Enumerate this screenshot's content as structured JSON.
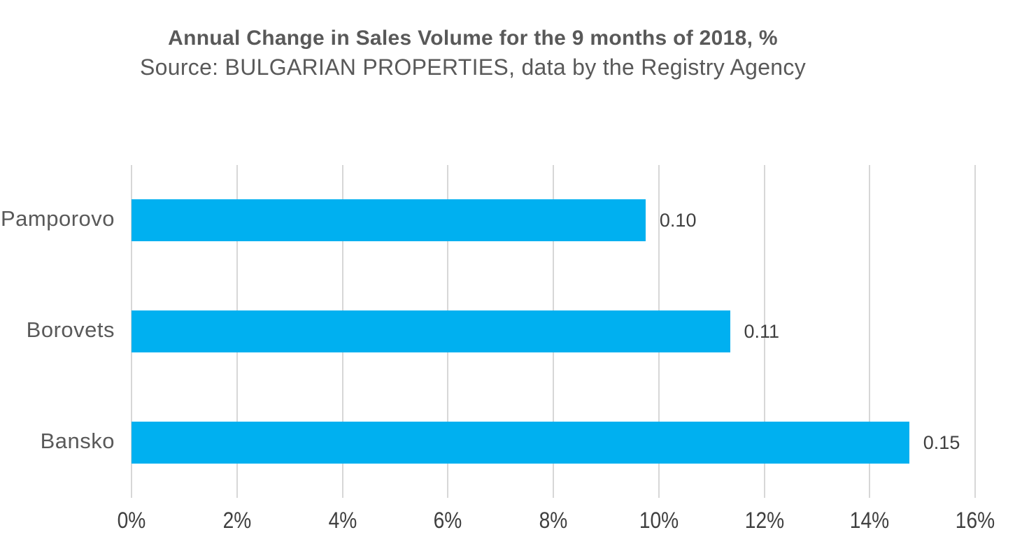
{
  "chart_data": {
    "type": "bar",
    "orientation": "horizontal",
    "title": "Annual Change in Sales Volume for the 9 months of 2018, %",
    "subtitle": "Source: BULGARIAN PROPERTIES, data by the Registry Agency",
    "categories": [
      "Pamporovo",
      "Borovets",
      "Bansko"
    ],
    "values_percent": [
      9.75,
      11.35,
      14.75
    ],
    "data_labels": [
      "0.10",
      "0.11",
      "0.15"
    ],
    "x_axis": {
      "min": 0,
      "max": 16,
      "ticks": [
        "0%",
        "2%",
        "4%",
        "6%",
        "8%",
        "10%",
        "12%",
        "14%",
        "16%"
      ]
    },
    "grid": true,
    "legend": false,
    "colors": {
      "bar": "#00B0F0",
      "gridline": "#D7D7D7",
      "title_text": "#595959",
      "category_text": "#595959",
      "axis_text": "#3F3F3F"
    }
  }
}
